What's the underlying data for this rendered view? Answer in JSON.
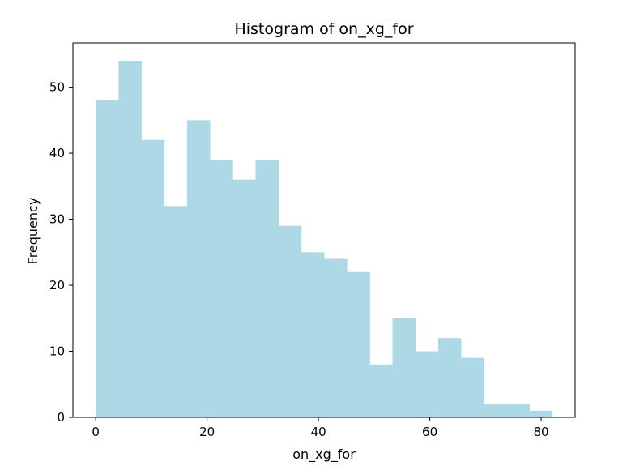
{
  "chart_data": {
    "type": "bar",
    "title": "Histogram of on_xg_for",
    "xlabel": "on_xg_for",
    "ylabel": "Frequency",
    "bin_edges": [
      0,
      4.1,
      8.2,
      12.3,
      16.4,
      20.5,
      24.6,
      28.7,
      32.8,
      36.9,
      41.0,
      45.1,
      49.2,
      53.3,
      57.4,
      61.5,
      65.6,
      69.7,
      73.8,
      77.9,
      82.0
    ],
    "values": [
      48,
      54,
      42,
      32,
      45,
      39,
      36,
      39,
      29,
      25,
      24,
      22,
      8,
      15,
      10,
      12,
      9,
      2,
      2,
      1
    ],
    "xlim": [
      -4.1,
      86.1
    ],
    "ylim": [
      0,
      56.7
    ],
    "xticks": [
      0,
      20,
      40,
      60,
      80
    ],
    "yticks": [
      0,
      10,
      20,
      30,
      40,
      50
    ],
    "bar_color": "#add8e6",
    "grid": false,
    "legend": "none"
  }
}
